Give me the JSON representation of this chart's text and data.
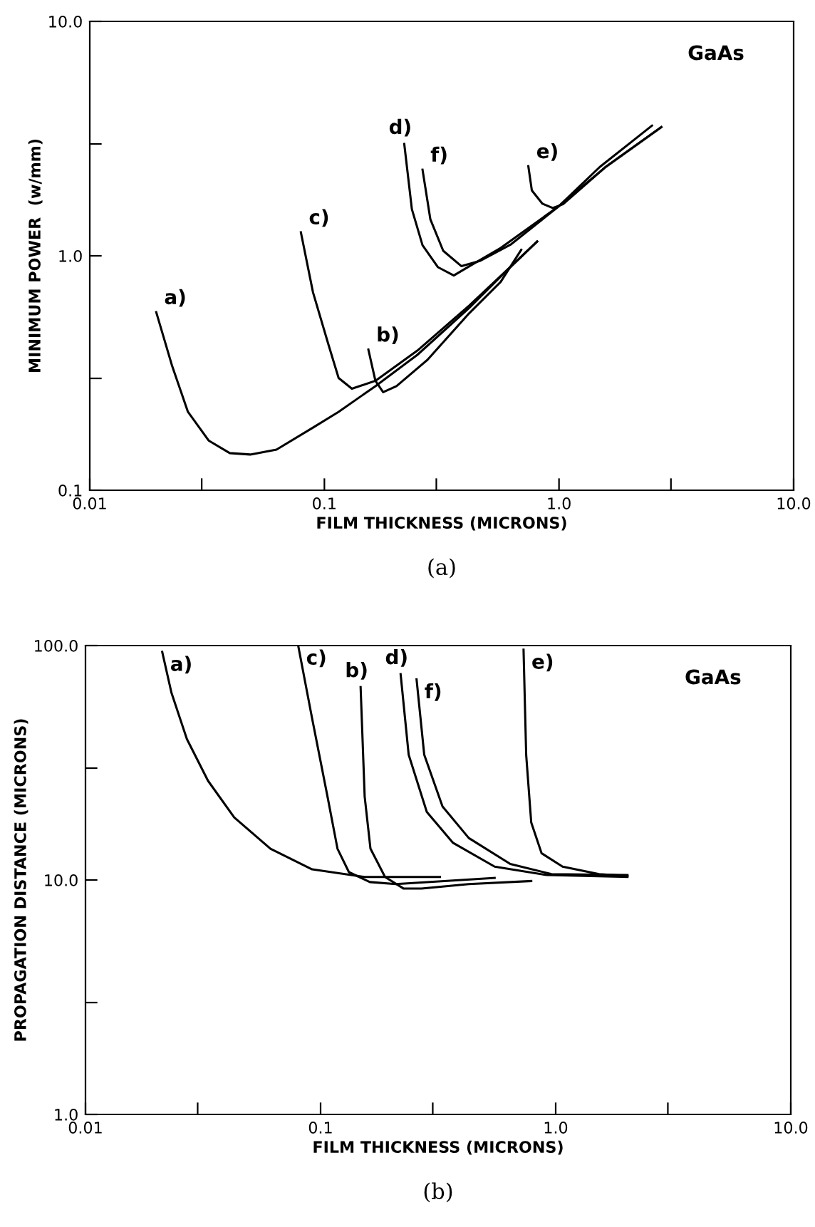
{
  "chart_data": [
    {
      "type": "line",
      "xlabel": "FILM THICKNESS (MICRONS)",
      "ylabel": "MINIMUM POWER  (w/mm)",
      "log": "xy",
      "grid": false,
      "legend": false,
      "marker": "none",
      "line_style": "solid",
      "xlim": [
        0.01,
        10
      ],
      "ylim": [
        0.1,
        10
      ],
      "xticks": [
        {
          "value": 0.01,
          "label": "0.01"
        },
        {
          "value": 0.03,
          "label": null
        },
        {
          "value": 0.1,
          "label": "0.1"
        },
        {
          "value": 0.3,
          "label": null
        },
        {
          "value": 1,
          "label": "1.0"
        },
        {
          "value": 3,
          "label": null
        },
        {
          "value": 10,
          "label": "10.0"
        }
      ],
      "yticks": [
        {
          "value": 0.1,
          "label": "0.1"
        },
        {
          "value": 0.3,
          "label": null
        },
        {
          "value": 1,
          "label": "1.0"
        },
        {
          "value": 3,
          "label": null
        },
        {
          "value": 10,
          "label": "10.0"
        }
      ],
      "annotations": [
        "GaAs",
        "(a)"
      ],
      "series": [
        {
          "name": "a)",
          "color": "#000000",
          "x": [
            0.0192,
            0.0224,
            0.0262,
            0.0321,
            0.0395,
            0.0483,
            0.0625,
            0.0894,
            0.115,
            0.165,
            0.249,
            0.415,
            0.564,
            0.807
          ],
          "values": [
            0.575,
            0.341,
            0.216,
            0.163,
            0.144,
            0.142,
            0.149,
            0.185,
            0.216,
            0.278,
            0.378,
            0.6,
            0.815,
            1.15
          ]
        },
        {
          "name": "b)",
          "color": "#000000",
          "x": [
            0.154,
            0.165,
            0.178,
            0.203,
            0.275,
            0.415,
            0.564,
            0.69
          ],
          "values": [
            0.398,
            0.293,
            0.262,
            0.278,
            0.36,
            0.57,
            0.774,
            1.06
          ]
        },
        {
          "name": "c)",
          "color": "#000000",
          "x": [
            0.0794,
            0.0894,
            0.104,
            0.115,
            0.131,
            0.165,
            0.249,
            0.415,
            0.564,
            0.807
          ],
          "values": [
            1.26,
            0.699,
            0.419,
            0.301,
            0.271,
            0.293,
            0.394,
            0.614,
            0.82,
            1.15
          ]
        },
        {
          "name": "d)",
          "color": "#000000",
          "x": [
            0.219,
            0.236,
            0.262,
            0.305,
            0.356,
            0.415,
            0.564,
            1.0,
            1.49,
            2.49
          ],
          "values": [
            3.0,
            1.58,
            1.11,
            0.894,
            0.824,
            0.903,
            1.08,
            1.63,
            2.39,
            3.59
          ]
        },
        {
          "name": "e)",
          "color": "#000000",
          "x": [
            0.74,
            0.766,
            0.849,
            0.94,
            1.04,
            1.57,
            2.73
          ],
          "values": [
            2.41,
            1.9,
            1.67,
            1.6,
            1.66,
            2.38,
            3.54
          ]
        },
        {
          "name": "f)",
          "color": "#000000",
          "x": [
            0.262,
            0.283,
            0.321,
            0.384,
            0.459,
            0.625,
            1.0,
            1.57,
            2.73
          ],
          "values": [
            2.33,
            1.43,
            1.05,
            0.903,
            0.95,
            1.12,
            1.63,
            2.38,
            3.54
          ]
        }
      ]
    },
    {
      "type": "line",
      "xlabel": "FILM THICKNESS (MICRONS)",
      "ylabel": "PROPAGATION DISTANCE (MICRONS)",
      "log": "xy",
      "grid": false,
      "legend": false,
      "marker": "none",
      "line_style": "solid",
      "xlim": [
        0.01,
        10
      ],
      "ylim": [
        1,
        100
      ],
      "xticks": [
        {
          "value": 0.01,
          "label": "0.01"
        },
        {
          "value": 0.03,
          "label": null
        },
        {
          "value": 0.1,
          "label": "0.1"
        },
        {
          "value": 0.3,
          "label": null
        },
        {
          "value": 1,
          "label": "1.0"
        },
        {
          "value": 3,
          "label": null
        },
        {
          "value": 10,
          "label": "10.0"
        }
      ],
      "yticks": [
        {
          "value": 1,
          "label": "1.0"
        },
        {
          "value": 3,
          "label": null
        },
        {
          "value": 10,
          "label": "10.0"
        },
        {
          "value": 30,
          "label": null
        },
        {
          "value": 100,
          "label": "100.0"
        }
      ],
      "annotations": [
        "GaAs",
        "(b)"
      ],
      "series": [
        {
          "name": "a)",
          "color": "#000000",
          "x": [
            0.0212,
            0.0232,
            0.027,
            0.0332,
            0.0429,
            0.0612,
            0.092,
            0.154,
            0.322
          ],
          "values": [
            94,
            63,
            39.9,
            26.5,
            18.5,
            13.6,
            11.1,
            10.3,
            10.3
          ]
        },
        {
          "name": "c)",
          "color": "#000000",
          "x": [
            0.0803,
            0.092,
            0.107,
            0.118,
            0.132,
            0.162,
            0.209,
            0.55
          ],
          "values": [
            100,
            49,
            22.7,
            13.6,
            10.8,
            9.8,
            9.6,
            10.2
          ]
        },
        {
          "name": "b)",
          "color": "#000000",
          "x": [
            0.148,
            0.154,
            0.163,
            0.188,
            0.225,
            0.269,
            0.427,
            0.787
          ],
          "values": [
            66.5,
            22.7,
            13.6,
            10.3,
            9.2,
            9.2,
            9.6,
            9.9
          ]
        },
        {
          "name": "d)",
          "color": "#000000",
          "x": [
            0.219,
            0.237,
            0.283,
            0.366,
            0.55,
            0.917,
            2.02
          ],
          "values": [
            75.5,
            34.2,
            19.5,
            14.4,
            11.4,
            10.5,
            10.3
          ]
        },
        {
          "name": "f)",
          "color": "#000000",
          "x": [
            0.256,
            0.276,
            0.33,
            0.427,
            0.641,
            0.96,
            2.02
          ],
          "values": [
            71.8,
            34.2,
            20.6,
            15.1,
            11.7,
            10.6,
            10.5
          ]
        },
        {
          "name": "e)",
          "color": "#000000",
          "x": [
            0.73,
            0.749,
            0.787,
            0.871,
            1.07,
            1.53,
            2.02
          ],
          "values": [
            96,
            34.2,
            17.6,
            13,
            11.4,
            10.6,
            10.4
          ]
        }
      ]
    }
  ]
}
